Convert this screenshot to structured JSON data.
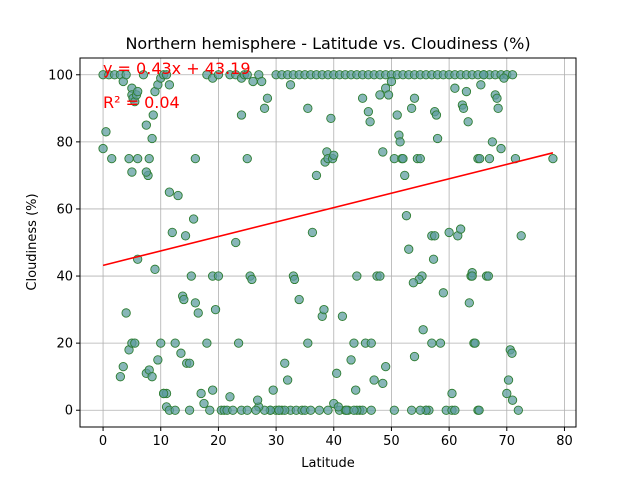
{
  "chart_data": {
    "type": "scatter",
    "title": "Northern hemisphere - Latitude vs. Cloudiness (%)",
    "xlabel": "Latitude",
    "ylabel": "Cloudiness (%)",
    "xlim": [
      -4,
      82
    ],
    "ylim": [
      -5,
      105
    ],
    "xticks": [
      0,
      10,
      20,
      30,
      40,
      50,
      60,
      70,
      80
    ],
    "yticks": [
      0,
      20,
      40,
      60,
      80,
      100
    ],
    "grid": true,
    "colors": {
      "point_fill": "#5f9ea0",
      "point_edge": "#2e7d32",
      "regression_line": "#ff0000",
      "annotation": "#ff0000",
      "grid": "#b0b0b0"
    },
    "annotations": [
      {
        "text": "y = 0.43x + 43.19",
        "at": [
          0,
          100
        ]
      },
      {
        "text": "R² = 0.04",
        "at": [
          0,
          90
        ]
      }
    ],
    "regression": {
      "slope": 0.43,
      "intercept": 43.19,
      "x_range": [
        0,
        78
      ]
    },
    "points": [
      [
        0,
        100
      ],
      [
        0,
        78
      ],
      [
        0.5,
        83
      ],
      [
        1,
        100
      ],
      [
        1.5,
        75
      ],
      [
        2,
        100
      ],
      [
        3,
        100
      ],
      [
        3.5,
        98
      ],
      [
        4,
        100
      ],
      [
        4.5,
        75
      ],
      [
        5,
        96
      ],
      [
        5,
        94
      ],
      [
        5.2,
        93
      ],
      [
        5.5,
        92
      ],
      [
        5.8,
        94
      ],
      [
        6,
        95
      ],
      [
        5,
        71
      ],
      [
        6,
        75
      ],
      [
        7,
        100
      ],
      [
        7.5,
        85
      ],
      [
        8,
        75
      ],
      [
        8.5,
        81
      ],
      [
        8.7,
        88
      ],
      [
        9,
        95
      ],
      [
        9.5,
        97
      ],
      [
        10,
        99
      ],
      [
        10.5,
        100
      ],
      [
        11,
        100
      ],
      [
        11.5,
        97
      ],
      [
        7.8,
        70
      ],
      [
        7.5,
        71
      ],
      [
        3,
        10
      ],
      [
        3.5,
        13
      ],
      [
        4,
        29
      ],
      [
        4.5,
        18
      ],
      [
        5,
        20
      ],
      [
        5.5,
        20
      ],
      [
        6,
        45
      ],
      [
        7.5,
        11
      ],
      [
        8,
        12
      ],
      [
        8.5,
        10
      ],
      [
        9,
        42
      ],
      [
        9.5,
        15
      ],
      [
        10,
        20
      ],
      [
        10.5,
        5
      ],
      [
        11,
        5
      ],
      [
        11.5,
        65
      ],
      [
        12,
        53
      ],
      [
        12.5,
        20
      ],
      [
        13,
        64
      ],
      [
        13.5,
        17
      ],
      [
        13.8,
        34
      ],
      [
        14,
        33
      ],
      [
        14.3,
        52
      ],
      [
        14.5,
        14
      ],
      [
        15,
        14
      ],
      [
        15.3,
        40
      ],
      [
        15.7,
        57
      ],
      [
        16,
        75
      ],
      [
        16,
        32
      ],
      [
        16.5,
        29
      ],
      [
        17,
        5
      ],
      [
        17.5,
        2
      ],
      [
        18,
        20
      ],
      [
        18.5,
        0
      ],
      [
        19,
        40
      ],
      [
        19.5,
        30
      ],
      [
        19,
        6
      ],
      [
        20,
        40
      ],
      [
        20.5,
        0
      ],
      [
        21,
        0
      ],
      [
        21.5,
        0
      ],
      [
        22,
        4
      ],
      [
        22.5,
        0
      ],
      [
        23,
        50
      ],
      [
        23.5,
        20
      ],
      [
        24,
        88
      ],
      [
        24,
        0
      ],
      [
        25,
        75
      ],
      [
        25.5,
        40
      ],
      [
        25.8,
        39
      ],
      [
        11,
        1
      ],
      [
        11.5,
        0
      ],
      [
        12.5,
        0
      ],
      [
        15,
        0
      ],
      [
        10.5,
        5
      ],
      [
        18,
        100
      ],
      [
        19,
        99
      ],
      [
        20,
        100
      ],
      [
        22,
        100
      ],
      [
        23,
        100
      ],
      [
        24,
        99
      ],
      [
        24.5,
        100
      ],
      [
        25,
        100
      ],
      [
        26,
        98
      ],
      [
        27,
        100
      ],
      [
        27.5,
        98
      ],
      [
        28,
        90
      ],
      [
        28.5,
        93
      ],
      [
        29,
        0
      ],
      [
        29.5,
        6
      ],
      [
        30,
        0
      ],
      [
        30.5,
        0
      ],
      [
        31,
        0
      ],
      [
        31.5,
        14
      ],
      [
        32,
        9
      ],
      [
        32.5,
        0
      ],
      [
        33,
        40
      ],
      [
        33.2,
        39
      ],
      [
        33.5,
        0
      ],
      [
        34,
        33
      ],
      [
        34.5,
        0
      ],
      [
        35,
        0
      ],
      [
        35.5,
        20
      ],
      [
        36,
        0
      ],
      [
        36.3,
        53
      ],
      [
        37,
        70
      ],
      [
        37.5,
        0
      ],
      [
        38,
        28
      ],
      [
        38.3,
        30
      ],
      [
        38.5,
        74
      ],
      [
        38.8,
        77
      ],
      [
        39,
        75
      ],
      [
        39.5,
        87
      ],
      [
        39.8,
        75
      ],
      [
        40,
        76
      ],
      [
        40,
        2
      ],
      [
        40.5,
        11
      ],
      [
        41,
        0
      ],
      [
        41.5,
        28
      ],
      [
        42,
        0
      ],
      [
        42.5,
        0
      ],
      [
        43,
        15
      ],
      [
        43.5,
        20
      ],
      [
        43.8,
        6
      ],
      [
        44,
        40
      ],
      [
        44.5,
        0
      ],
      [
        45,
        93
      ],
      [
        45.5,
        20
      ],
      [
        46,
        89
      ],
      [
        46.3,
        86
      ],
      [
        46.5,
        20
      ],
      [
        47,
        9
      ],
      [
        47.5,
        40
      ],
      [
        48,
        40
      ],
      [
        48.5,
        8
      ],
      [
        49,
        13
      ],
      [
        30,
        100
      ],
      [
        31,
        100
      ],
      [
        32,
        100
      ],
      [
        32.5,
        97
      ],
      [
        33,
        100
      ],
      [
        34,
        100
      ],
      [
        35,
        100
      ],
      [
        35.5,
        90
      ],
      [
        36,
        100
      ],
      [
        37,
        100
      ],
      [
        38,
        100
      ],
      [
        39,
        100
      ],
      [
        40,
        100
      ],
      [
        41,
        100
      ],
      [
        42,
        100
      ],
      [
        43,
        100
      ],
      [
        44,
        100
      ],
      [
        45,
        100
      ],
      [
        46,
        100
      ],
      [
        47,
        100
      ],
      [
        48,
        100
      ],
      [
        49,
        100
      ],
      [
        50,
        100
      ],
      [
        51,
        100
      ],
      [
        52,
        100
      ],
      [
        53,
        100
      ],
      [
        54,
        100
      ],
      [
        55,
        100
      ],
      [
        56,
        100
      ],
      [
        57,
        100
      ],
      [
        58,
        100
      ],
      [
        59,
        100
      ],
      [
        60,
        100
      ],
      [
        61,
        100
      ],
      [
        62,
        100
      ],
      [
        63,
        100
      ],
      [
        64,
        100
      ],
      [
        65,
        100
      ],
      [
        66,
        100
      ],
      [
        67,
        100
      ],
      [
        68,
        100
      ],
      [
        69,
        100
      ],
      [
        70,
        100
      ],
      [
        71,
        100
      ],
      [
        48,
        94
      ],
      [
        48.5,
        77
      ],
      [
        49,
        96
      ],
      [
        49.5,
        94
      ],
      [
        50,
        98
      ],
      [
        50.5,
        75
      ],
      [
        51,
        88
      ],
      [
        51.3,
        82
      ],
      [
        51.5,
        80
      ],
      [
        51.8,
        75
      ],
      [
        52,
        75
      ],
      [
        52.3,
        70
      ],
      [
        52.6,
        58
      ],
      [
        53,
        48
      ],
      [
        53.5,
        90
      ],
      [
        54,
        93
      ],
      [
        54.5,
        75
      ],
      [
        55,
        75
      ],
      [
        55.3,
        40
      ],
      [
        55.5,
        24
      ],
      [
        56,
        0
      ],
      [
        56.5,
        0
      ],
      [
        57,
        52
      ],
      [
        57.3,
        45
      ],
      [
        57.5,
        89
      ],
      [
        57.8,
        88
      ],
      [
        58,
        81
      ],
      [
        58.5,
        20
      ],
      [
        59,
        35
      ],
      [
        59.5,
        0
      ],
      [
        60,
        53
      ],
      [
        60.5,
        5
      ],
      [
        61,
        96
      ],
      [
        61.5,
        52
      ],
      [
        62,
        54
      ],
      [
        62.3,
        91
      ],
      [
        62.5,
        90
      ],
      [
        63,
        95
      ],
      [
        63.3,
        86
      ],
      [
        63.5,
        32
      ],
      [
        63.8,
        40
      ],
      [
        64,
        41
      ],
      [
        64.3,
        20
      ],
      [
        64.5,
        20
      ],
      [
        65,
        75
      ],
      [
        65.3,
        75
      ],
      [
        65.5,
        97
      ],
      [
        66,
        100
      ],
      [
        66.5,
        40
      ],
      [
        66.8,
        40
      ],
      [
        67,
        75
      ],
      [
        67.5,
        80
      ],
      [
        68,
        94
      ],
      [
        68.3,
        93
      ],
      [
        68.5,
        90
      ],
      [
        69,
        78
      ],
      [
        69.5,
        99
      ],
      [
        70,
        5
      ],
      [
        70.3,
        9
      ],
      [
        70.6,
        18
      ],
      [
        70.9,
        17
      ],
      [
        71,
        3
      ],
      [
        71.5,
        75
      ],
      [
        72,
        0
      ],
      [
        72.5,
        52
      ],
      [
        78,
        75
      ],
      [
        56,
        0
      ],
      [
        57,
        20
      ],
      [
        50.5,
        0
      ],
      [
        53.5,
        0
      ],
      [
        54,
        16
      ],
      [
        55,
        0
      ],
      [
        60.5,
        0
      ],
      [
        61,
        0
      ],
      [
        65,
        0
      ],
      [
        65.2,
        0
      ],
      [
        54.8,
        39
      ],
      [
        53.8,
        38
      ],
      [
        57.5,
        52
      ],
      [
        64,
        40
      ],
      [
        45,
        0
      ],
      [
        46.5,
        0
      ],
      [
        44,
        0
      ],
      [
        29,
        0
      ],
      [
        28,
        0
      ],
      [
        27,
        1
      ],
      [
        26.8,
        3
      ],
      [
        26.5,
        0
      ],
      [
        25,
        0
      ],
      [
        31.5,
        0
      ],
      [
        30.5,
        0
      ],
      [
        39,
        0
      ],
      [
        40.8,
        1
      ],
      [
        42.2,
        0
      ],
      [
        43.5,
        0
      ]
    ]
  }
}
